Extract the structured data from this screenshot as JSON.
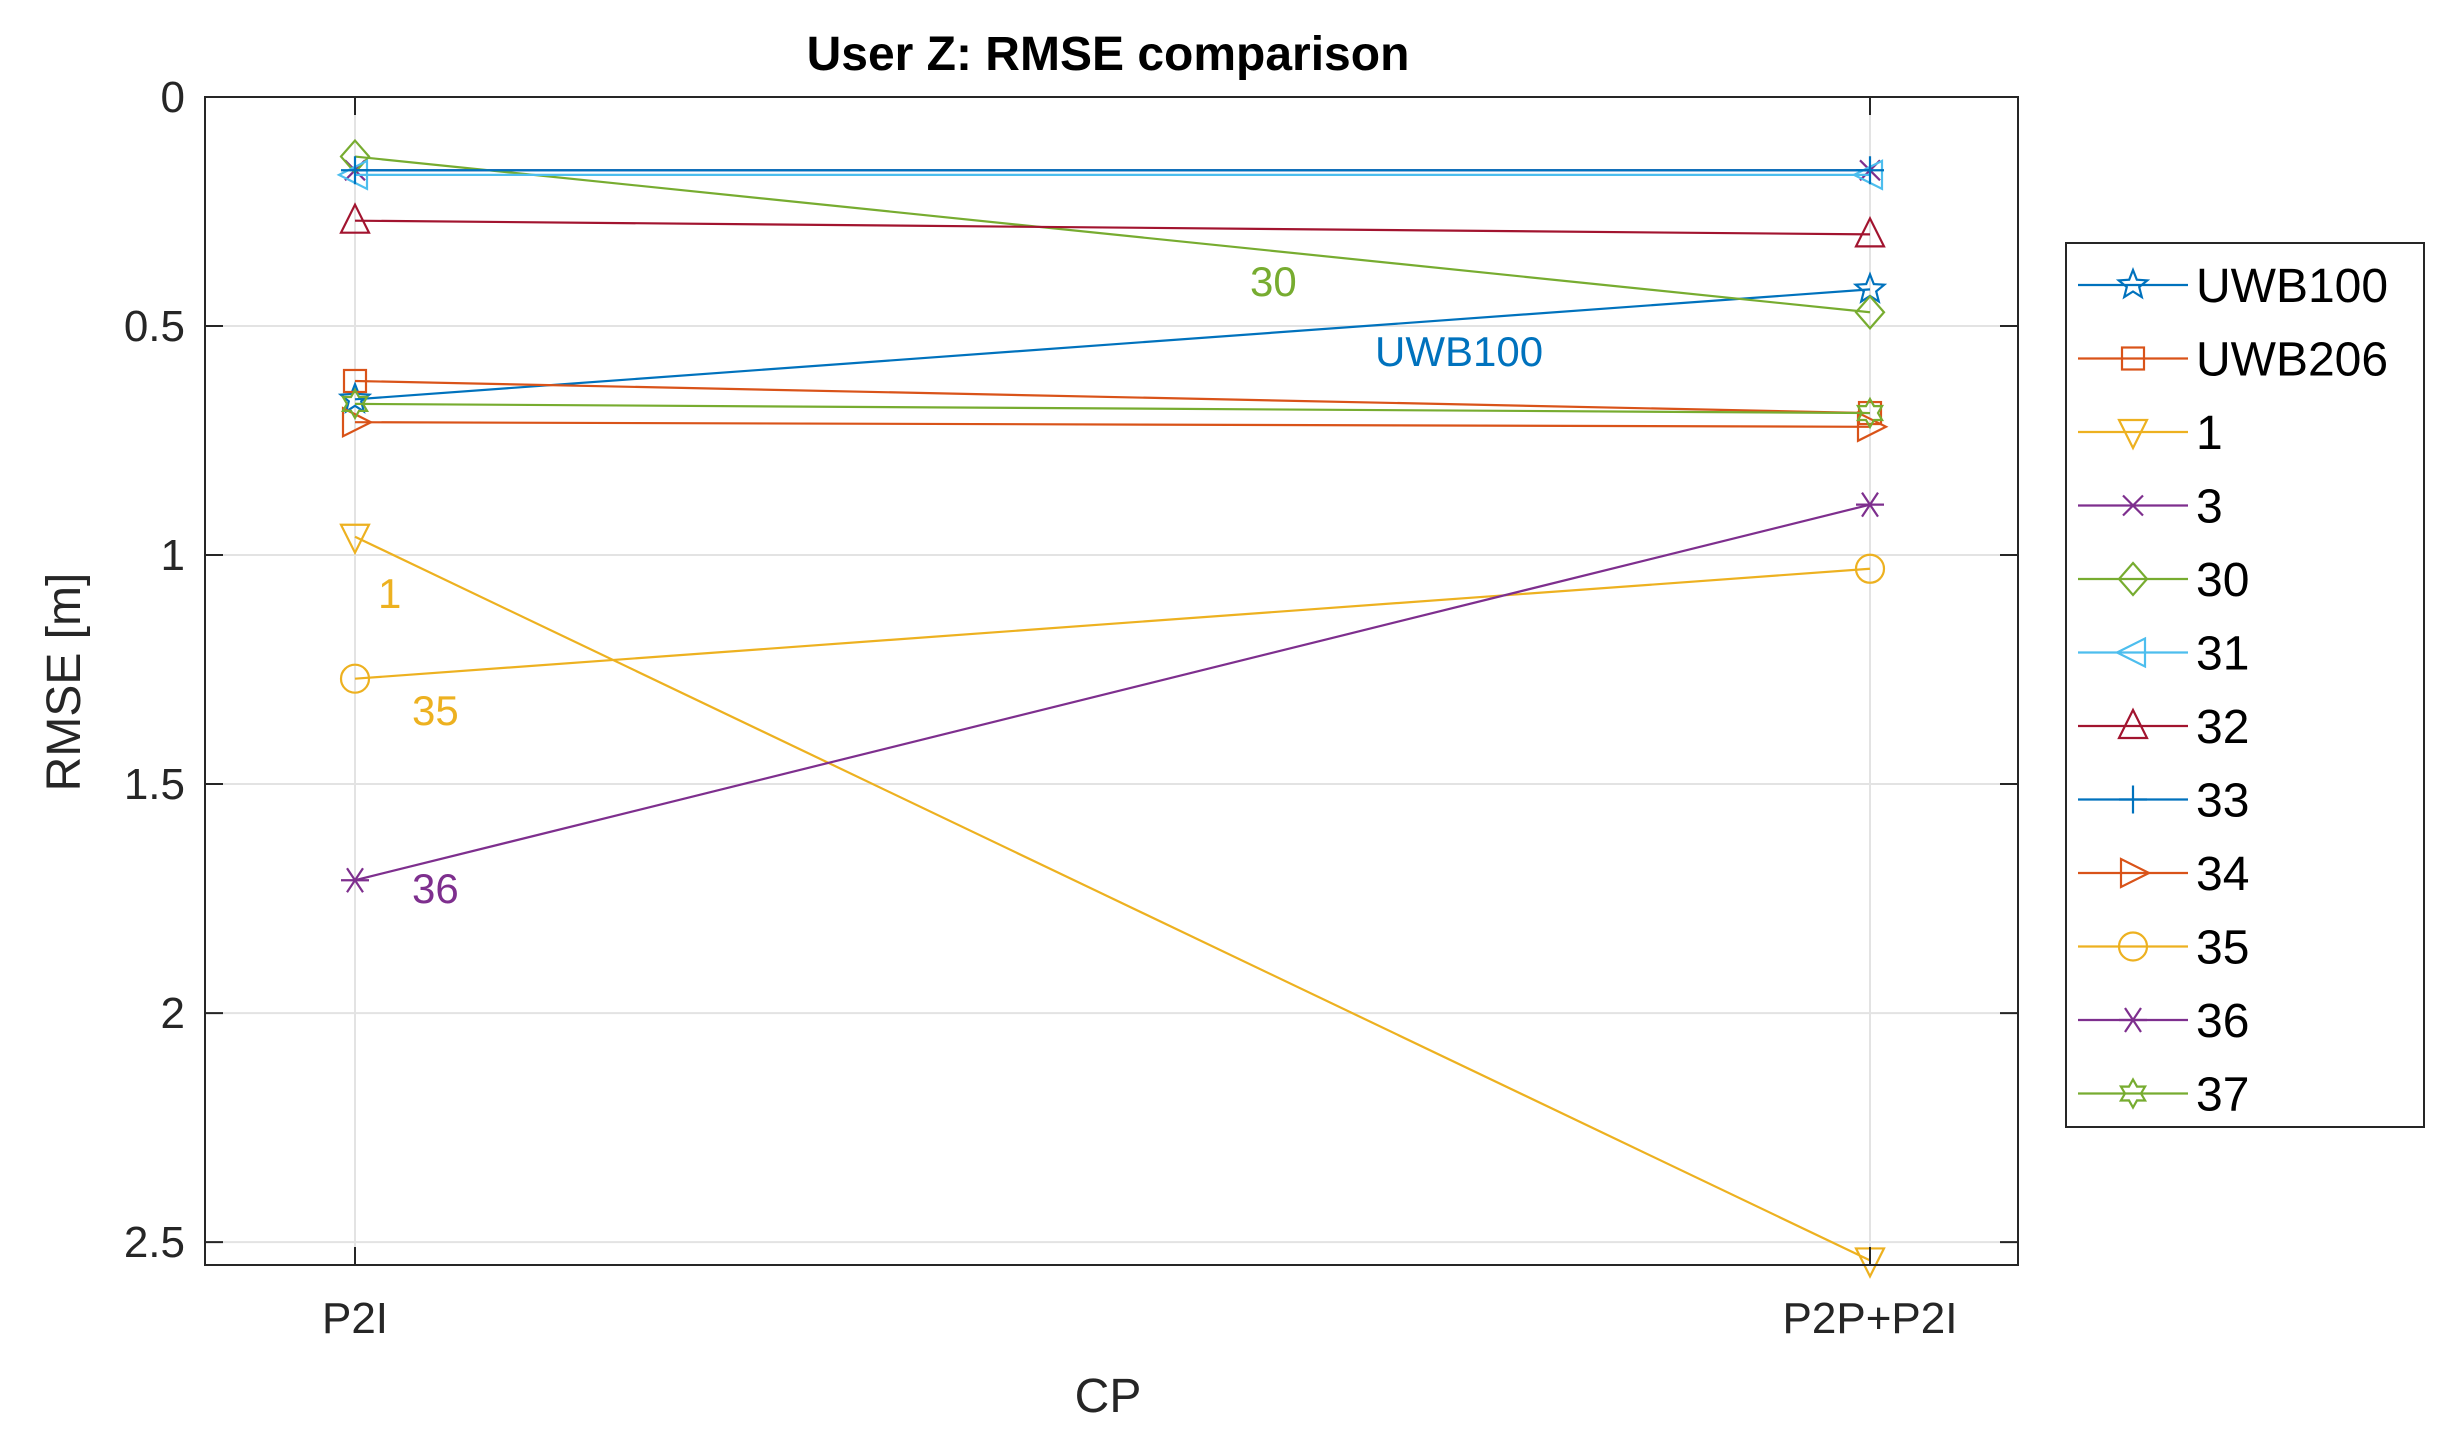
{
  "chart_data": {
    "type": "line",
    "title": "User Z: RMSE comparison",
    "xlabel": "CP",
    "ylabel": "RMSE [m]",
    "categories": [
      "P2I",
      "P2P+P2I"
    ],
    "ylim": [
      0,
      2.55
    ],
    "y_reversed": true,
    "yticks": [
      0,
      0.5,
      1,
      1.5,
      2,
      2.5
    ],
    "ytick_labels": [
      "0",
      "0.5",
      "1",
      "1.5",
      "2",
      "2.5"
    ],
    "grid": true,
    "legend_position": "outside-right",
    "series": [
      {
        "name": "UWB100",
        "values": [
          0.66,
          0.42
        ],
        "color": "#0072BD",
        "marker": "pentagram"
      },
      {
        "name": "UWB206",
        "values": [
          0.62,
          0.69
        ],
        "color": "#D95319",
        "marker": "square"
      },
      {
        "name": "1",
        "values": [
          0.96,
          2.54
        ],
        "color": "#EDB120",
        "marker": "triangle-down"
      },
      {
        "name": "3",
        "values": [
          0.16,
          0.16
        ],
        "color": "#7E2F8E",
        "marker": "x"
      },
      {
        "name": "30",
        "values": [
          0.13,
          0.47
        ],
        "color": "#77AC30",
        "marker": "diamond"
      },
      {
        "name": "31",
        "values": [
          0.17,
          0.17
        ],
        "color": "#4DBEEE",
        "marker": "triangle-left"
      },
      {
        "name": "32",
        "values": [
          0.27,
          0.3
        ],
        "color": "#A2142F",
        "marker": "triangle-up"
      },
      {
        "name": "33",
        "values": [
          0.16,
          0.16
        ],
        "color": "#0072BD",
        "marker": "plus"
      },
      {
        "name": "34",
        "values": [
          0.71,
          0.72
        ],
        "color": "#D95319",
        "marker": "triangle-right"
      },
      {
        "name": "35",
        "values": [
          1.27,
          1.03
        ],
        "color": "#EDB120",
        "marker": "circle"
      },
      {
        "name": "36",
        "values": [
          1.71,
          0.89
        ],
        "color": "#7E2F8E",
        "marker": "asterisk"
      },
      {
        "name": "37",
        "values": [
          0.67,
          0.69
        ],
        "color": "#77AC30",
        "marker": "hexagram"
      }
    ],
    "annotations": [
      {
        "text": "30",
        "series": "30",
        "color": "#77AC30"
      },
      {
        "text": "UWB100",
        "series": "UWB100",
        "color": "#0072BD"
      },
      {
        "text": "1",
        "series": "1",
        "color": "#EDB120"
      },
      {
        "text": "35",
        "series": "35",
        "color": "#EDB120"
      },
      {
        "text": "36",
        "series": "36",
        "color": "#7E2F8E"
      }
    ]
  }
}
